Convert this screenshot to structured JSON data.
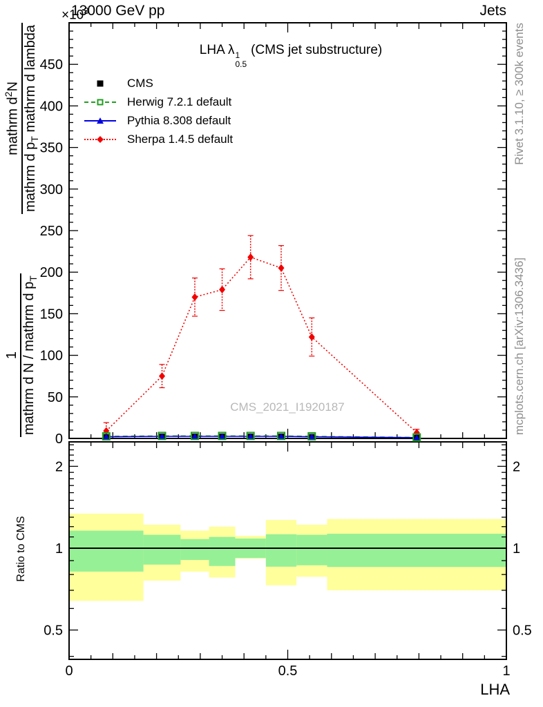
{
  "header": {
    "multiplier_base": "×10",
    "multiplier_exp": "3",
    "beam": "13000 GeV pp",
    "process": "Jets"
  },
  "plot_title": {
    "prefix": "LHA λ",
    "sup": "1",
    "sub": "0.5",
    "suffix": "(CMS jet substructure)"
  },
  "watermark": "CMS_2021_I1920187",
  "side_notes": {
    "top_right": "Rivet 3.1.10, ≥ 300k events",
    "bottom_right": "mcplots.cern.ch [arXiv:1306.3436]"
  },
  "ylabel_fractions": {
    "frac1": {
      "num": "1",
      "den": "mathrm d N / mathrm d p_[T]"
    },
    "frac2": {
      "num": "mathrm d^[2]N",
      "den": "mathrm d p_[T] mathrm d lambda"
    }
  },
  "colors": {
    "cms": "#000000",
    "herwig": "#1f9e1f",
    "pythia": "#0000e0",
    "sherpa": "#f20000",
    "band_outer": "#ffff9c",
    "band_inner": "#96f096",
    "note_gray": "#8e8e8e",
    "watermark_gray": "#b8b8b8"
  },
  "chart_data": [
    {
      "type": "line",
      "panel": "main",
      "title": "LHA λ^1_0.5 (CMS jet substructure)",
      "xlabel": "LHA",
      "y_axis_multiplier": "×10^3",
      "xlim": [
        0,
        1
      ],
      "ylim": [
        0,
        500
      ],
      "xticks": [
        0,
        0.5,
        1
      ],
      "xtick_labels": [
        "0",
        "0.5",
        "1"
      ],
      "x_minor_step": 0.05,
      "yticks": [
        0,
        50,
        100,
        150,
        200,
        250,
        300,
        350,
        400,
        450
      ],
      "y_minor_step": 10,
      "grid": false,
      "legend_position": "upper-left",
      "bin_edges": [
        0,
        0.17,
        0.255,
        0.32,
        0.38,
        0.45,
        0.52,
        0.59,
        1.0
      ],
      "x": [
        0.085,
        0.2125,
        0.2875,
        0.35,
        0.415,
        0.485,
        0.555,
        0.795
      ],
      "series": [
        {
          "name": "CMS",
          "marker": "filled-square",
          "line": "none",
          "values": [
            2,
            2.5,
            2.5,
            2.5,
            2.5,
            2.5,
            2,
            1
          ]
        },
        {
          "name": "Herwig 7.2.1 default",
          "marker": "open-square",
          "line": "dashed",
          "values": [
            2.5,
            3,
            3,
            3,
            3,
            3,
            2.5,
            1.2
          ]
        },
        {
          "name": "Pythia 8.308 default",
          "marker": "filled-triangle",
          "line": "solid",
          "values": [
            2,
            2.5,
            2.5,
            2.5,
            2.5,
            2.5,
            2,
            1
          ]
        },
        {
          "name": "Sherpa 1.4.5 default",
          "marker": "filled-diamond",
          "line": "dotted",
          "values": [
            9,
            75,
            170,
            179,
            218,
            205,
            122,
            7
          ],
          "errors": [
            10,
            14,
            23,
            25,
            26,
            27,
            23,
            4
          ]
        }
      ]
    },
    {
      "type": "ratio-bands",
      "panel": "ratio",
      "ylabel": "Ratio to CMS",
      "yscale": "log",
      "ylim": [
        0.39,
        2.46
      ],
      "yticks": [
        0.5,
        1,
        2
      ],
      "ytick_labels": [
        "0.5",
        "1",
        "2"
      ],
      "y_minor_ticks": [
        0.4,
        0.6,
        0.7,
        0.8,
        0.9,
        1.1,
        1.2,
        1.3,
        1.4,
        1.5,
        1.6,
        1.7,
        1.8,
        1.9,
        2.1,
        2.2,
        2.3,
        2.4
      ],
      "reference_line": 1,
      "bands": [
        {
          "xlo": 0,
          "xhi": 0.17,
          "outer": [
            0.64,
            1.34
          ],
          "inner": [
            0.82,
            1.16
          ]
        },
        {
          "xlo": 0.17,
          "xhi": 0.255,
          "outer": [
            0.76,
            1.22
          ],
          "inner": [
            0.87,
            1.12
          ]
        },
        {
          "xlo": 0.255,
          "xhi": 0.32,
          "outer": [
            0.82,
            1.16
          ],
          "inner": [
            0.905,
            1.08
          ]
        },
        {
          "xlo": 0.32,
          "xhi": 0.38,
          "outer": [
            0.78,
            1.2
          ],
          "inner": [
            0.86,
            1.1
          ]
        },
        {
          "xlo": 0.38,
          "xhi": 0.45,
          "outer": [
            0.915,
            1.11
          ],
          "inner": [
            0.92,
            1.085
          ]
        },
        {
          "xlo": 0.45,
          "xhi": 0.52,
          "outer": [
            0.73,
            1.27
          ],
          "inner": [
            0.855,
            1.125
          ]
        },
        {
          "xlo": 0.52,
          "xhi": 0.59,
          "outer": [
            0.785,
            1.22
          ],
          "inner": [
            0.865,
            1.12
          ]
        },
        {
          "xlo": 0.59,
          "xhi": 1.0,
          "outer": [
            0.7,
            1.28
          ],
          "inner": [
            0.853,
            1.13
          ]
        }
      ]
    }
  ]
}
